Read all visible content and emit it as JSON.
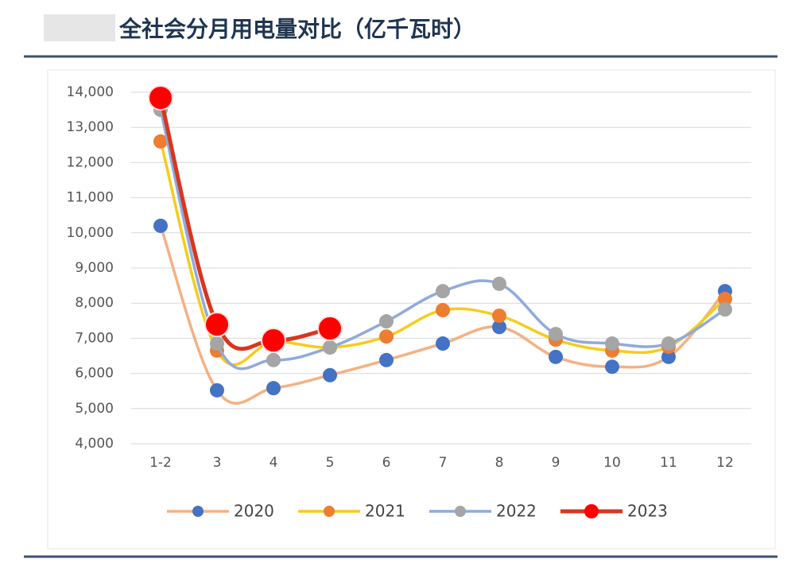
{
  "chart_data": {
    "type": "line",
    "title": "全社会分月用电量对比（亿千瓦时）",
    "categories": [
      "1-2",
      "3",
      "4",
      "5",
      "6",
      "7",
      "8",
      "9",
      "10",
      "11",
      "12"
    ],
    "series": [
      {
        "name": "2020",
        "color": "#f4b183",
        "marker_color": "#4472c4",
        "values": [
          10200,
          5520,
          5580,
          5950,
          6380,
          6850,
          7320,
          6470,
          6190,
          6470,
          8340
        ]
      },
      {
        "name": "2021",
        "color": "#f5cc1b",
        "marker_color": "#ed7d31",
        "values": [
          12600,
          6650,
          6900,
          6740,
          7050,
          7800,
          7640,
          6960,
          6650,
          6760,
          8120
        ]
      },
      {
        "name": "2022",
        "color": "#8faadc",
        "marker_color": "#a5a5a5",
        "values": [
          13500,
          6850,
          6380,
          6740,
          7480,
          8340,
          8550,
          7120,
          6850,
          6850,
          7820
        ]
      },
      {
        "name": "2023",
        "color": "#d9361e",
        "marker_color": "#ff0000",
        "values": [
          13840,
          7390,
          6940,
          7280,
          null,
          null,
          null,
          null,
          null,
          null,
          null
        ]
      }
    ],
    "ylim": [
      4000,
      14000
    ],
    "yticks": [
      {
        "value": 4000,
        "label": "4,000"
      },
      {
        "value": 5000,
        "label": "5,000"
      },
      {
        "value": 6000,
        "label": "6,000"
      },
      {
        "value": 7000,
        "label": "7,000"
      },
      {
        "value": 8000,
        "label": "8,000"
      },
      {
        "value": 9000,
        "label": "9,000"
      },
      {
        "value": 10000,
        "label": "10,000"
      },
      {
        "value": 11000,
        "label": "11,000"
      },
      {
        "value": 12000,
        "label": "12,000"
      },
      {
        "value": 13000,
        "label": "13,000"
      },
      {
        "value": 14000,
        "label": "14,000"
      }
    ],
    "grid": true
  }
}
